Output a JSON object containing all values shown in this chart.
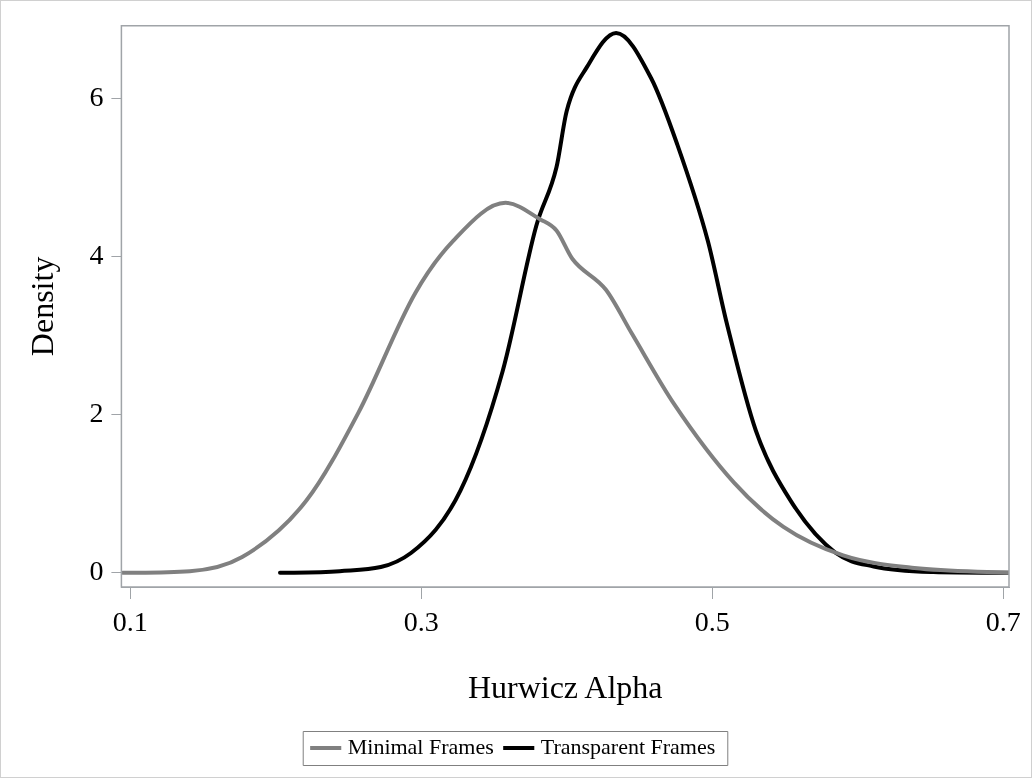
{
  "chart_data": {
    "type": "line",
    "xlabel": "Hurwicz Alpha",
    "ylabel": "Density",
    "xlim": [
      0.094,
      0.704
    ],
    "ylim": [
      -0.18,
      6.92
    ],
    "xticks": [
      0.1,
      0.3,
      0.5,
      0.7
    ],
    "yticks": [
      0,
      2,
      4,
      6
    ],
    "grid": false,
    "legend": "bottom",
    "marker": "none",
    "line_style": "solid",
    "series": [
      {
        "name": "Minimal Frames",
        "color": "#808080",
        "x": [
          0.095,
          0.141,
          0.177,
          0.221,
          0.257,
          0.296,
          0.322,
          0.358,
          0.382,
          0.393,
          0.404,
          0.427,
          0.445,
          0.474,
          0.515,
          0.549,
          0.59,
          0.639,
          0.704
        ],
        "values": [
          0,
          0.02,
          0.2,
          0.91,
          2.03,
          3.54,
          4.2,
          4.68,
          4.47,
          4.33,
          3.97,
          3.58,
          3.02,
          2.13,
          1.14,
          0.58,
          0.22,
          0.06,
          0
        ]
      },
      {
        "name": "Transparent Frames",
        "color": "#000000",
        "x": [
          0.203,
          0.244,
          0.293,
          0.327,
          0.356,
          0.379,
          0.393,
          0.4,
          0.414,
          0.434,
          0.458,
          0.476,
          0.497,
          0.51,
          0.53,
          0.554,
          0.585,
          0.611,
          0.652,
          0.704
        ],
        "values": [
          0,
          0.02,
          0.25,
          1.04,
          2.55,
          4.38,
          5.13,
          5.84,
          6.4,
          6.83,
          6.26,
          5.42,
          4.2,
          3.16,
          1.8,
          0.91,
          0.25,
          0.08,
          0.01,
          0
        ]
      }
    ]
  }
}
